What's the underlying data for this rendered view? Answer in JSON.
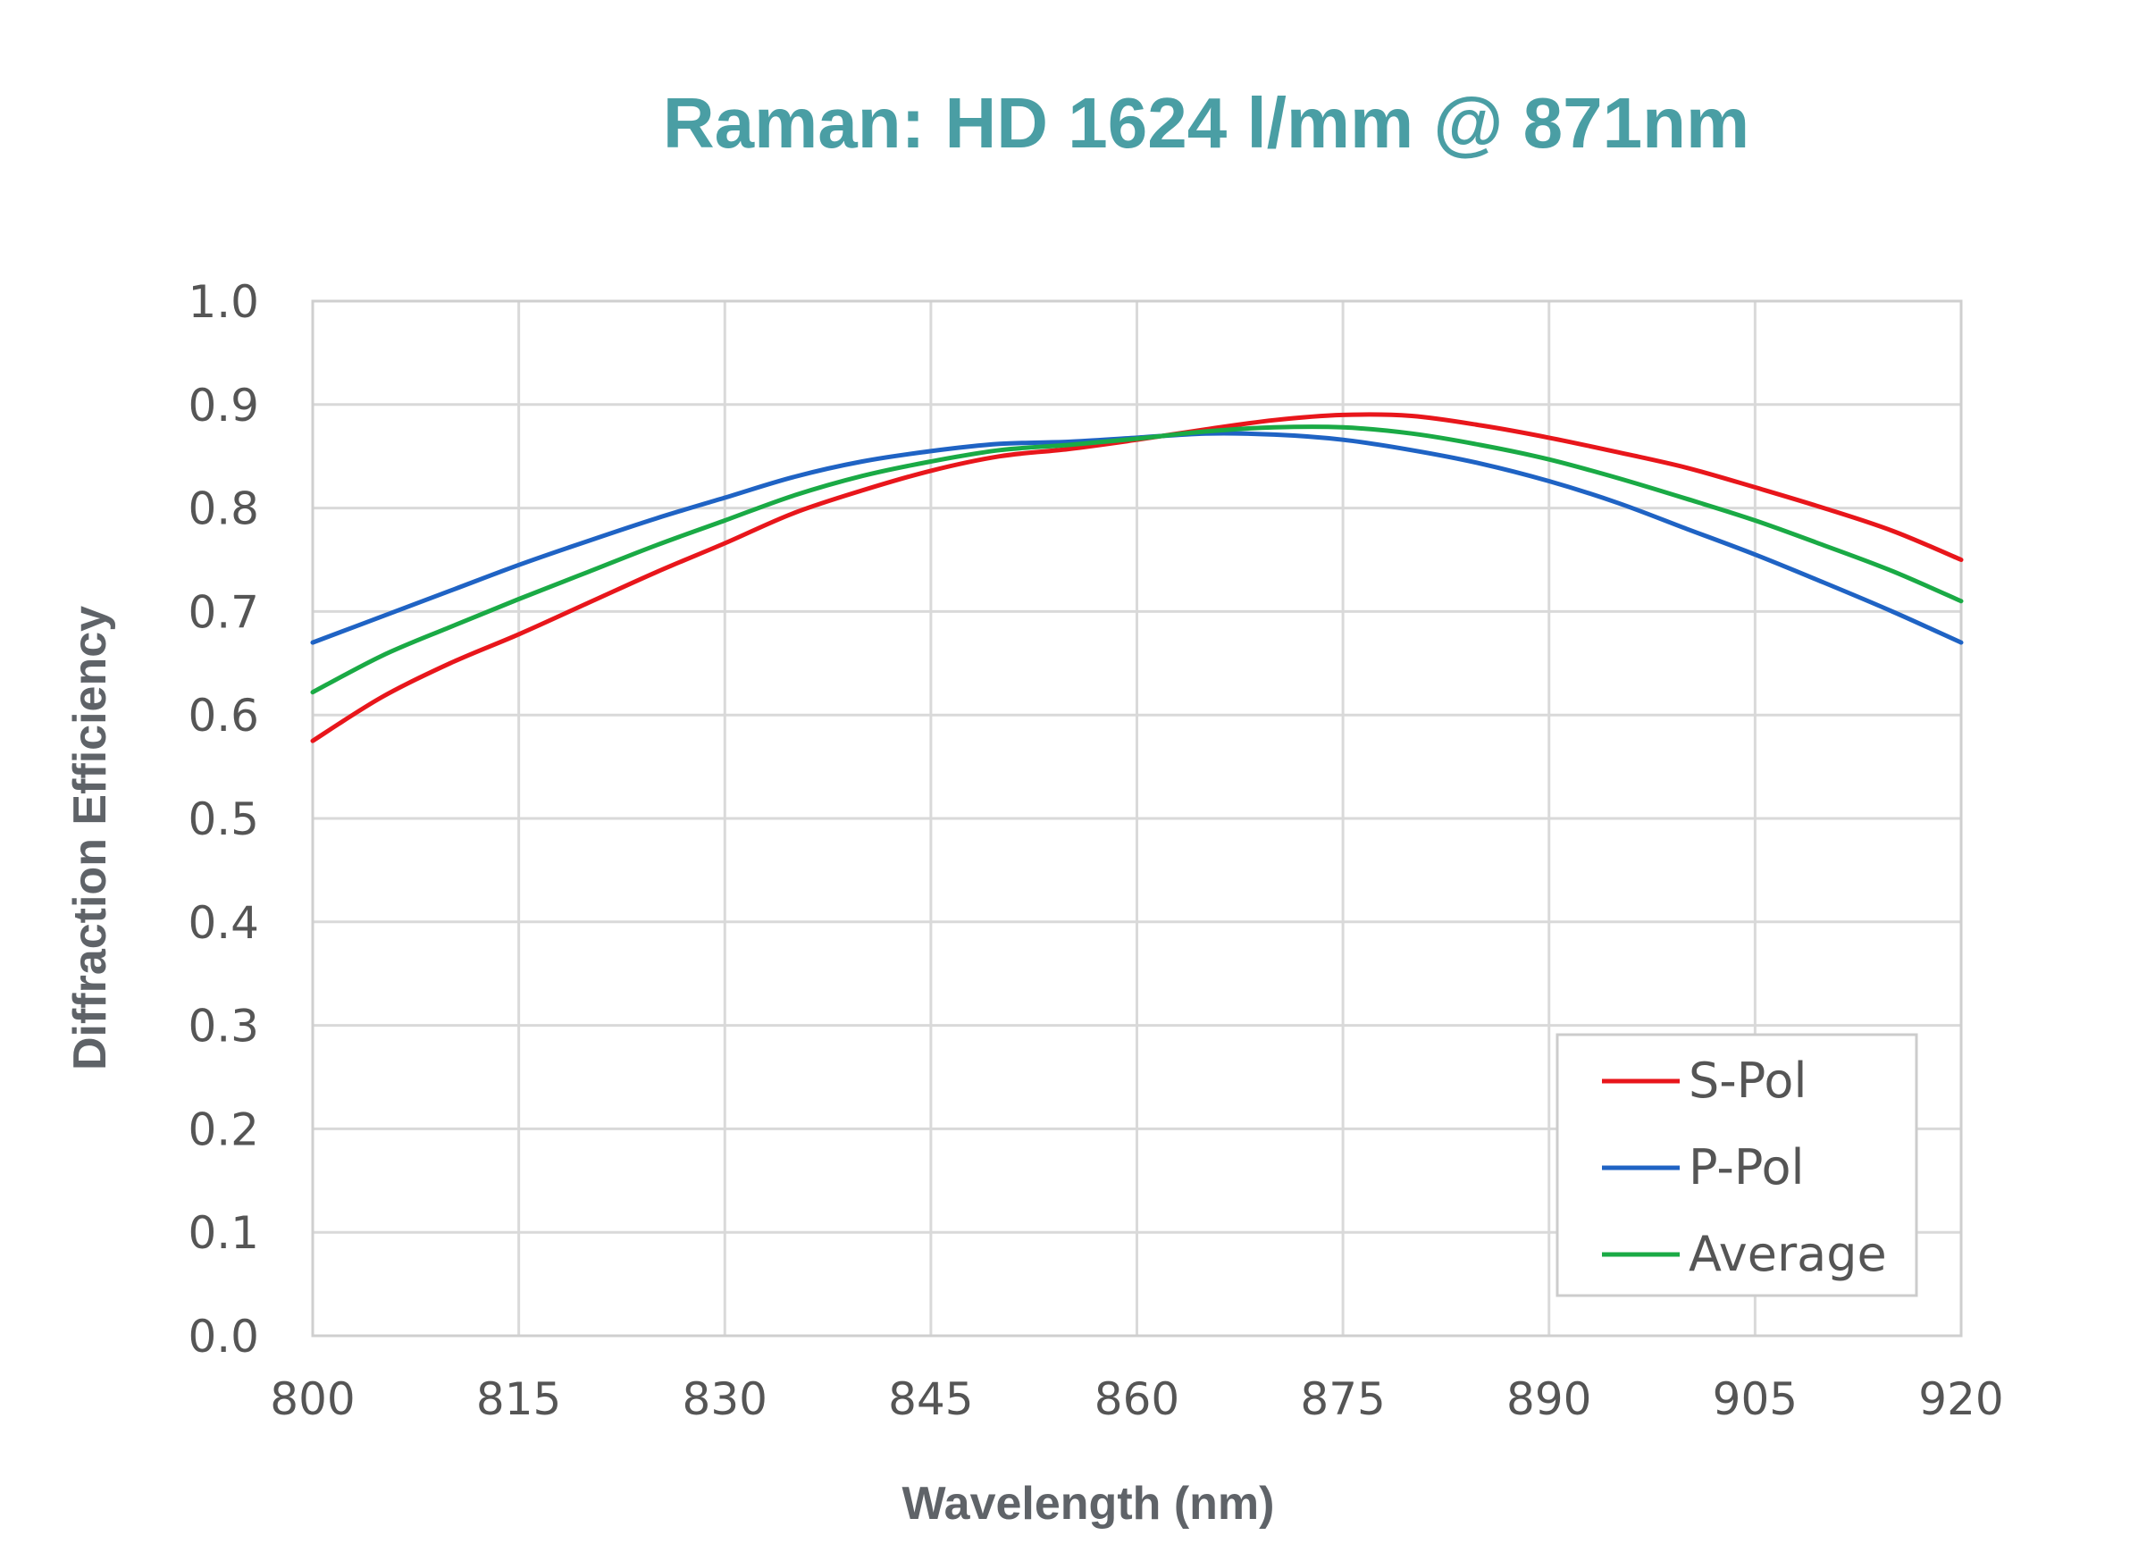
{
  "chart_data": {
    "type": "line",
    "title": "Raman: HD 1624 l/mm @ 871nm",
    "xlabel": "Wavelength (nm)",
    "ylabel": "Diffraction Efficiency",
    "xlim": [
      800,
      920
    ],
    "ylim": [
      0.0,
      1.0
    ],
    "xticks": [
      "800",
      "815",
      "830",
      "845",
      "860",
      "875",
      "890",
      "905",
      "920"
    ],
    "yticks": [
      "0.0",
      "0.1",
      "0.2",
      "0.3",
      "0.4",
      "0.5",
      "0.6",
      "0.7",
      "0.8",
      "0.9",
      "1.0"
    ],
    "grid": true,
    "legend_position": "bottom-right",
    "x": [
      800,
      805,
      810,
      815,
      820,
      825,
      830,
      835,
      840,
      845,
      850,
      855,
      860,
      865,
      870,
      875,
      880,
      885,
      890,
      895,
      900,
      905,
      910,
      915,
      920
    ],
    "series": [
      {
        "name": "S-Pol",
        "color": "#e8161b",
        "values": [
          0.575,
          0.617,
          0.65,
          0.678,
          0.708,
          0.738,
          0.766,
          0.795,
          0.817,
          0.836,
          0.85,
          0.857,
          0.866,
          0.876,
          0.885,
          0.89,
          0.889,
          0.88,
          0.868,
          0.854,
          0.839,
          0.82,
          0.8,
          0.778,
          0.75
        ]
      },
      {
        "name": "P-Pol",
        "color": "#1f63c4",
        "values": [
          0.67,
          0.695,
          0.72,
          0.745,
          0.768,
          0.79,
          0.81,
          0.83,
          0.845,
          0.855,
          0.862,
          0.864,
          0.868,
          0.872,
          0.871,
          0.866,
          0.856,
          0.843,
          0.826,
          0.805,
          0.78,
          0.755,
          0.728,
          0.7,
          0.67
        ]
      },
      {
        "name": "Average",
        "color": "#1aaa45",
        "values": [
          0.622,
          0.657,
          0.685,
          0.712,
          0.738,
          0.764,
          0.788,
          0.812,
          0.831,
          0.845,
          0.856,
          0.861,
          0.867,
          0.874,
          0.878,
          0.878,
          0.872,
          0.861,
          0.847,
          0.829,
          0.809,
          0.788,
          0.764,
          0.739,
          0.71
        ]
      }
    ]
  }
}
